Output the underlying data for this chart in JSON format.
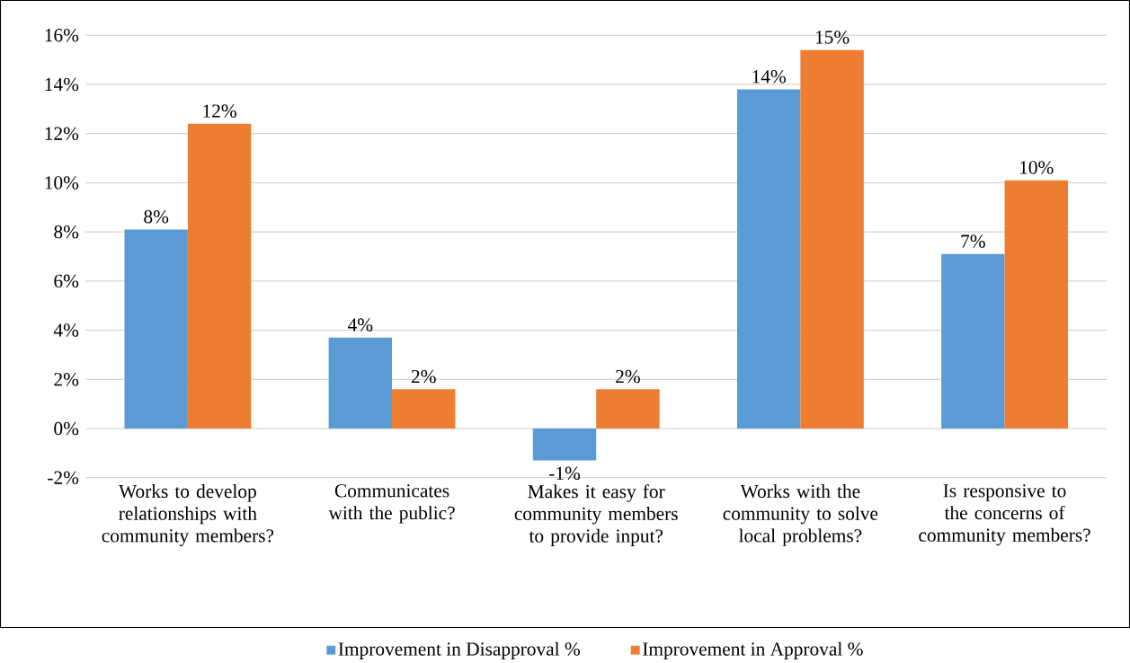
{
  "chart_data": {
    "type": "bar",
    "categories": [
      "Works to develop relationships with community members?",
      "Communicates with the public?",
      "Makes it easy for community members to provide input?",
      "Works with the community to solve local problems?",
      "Is responsive to the concerns of community members?"
    ],
    "series": [
      {
        "name": "Improvement in Disapproval %",
        "color": "#5b9bd5",
        "values": [
          8.1,
          3.7,
          -1.3,
          13.8,
          7.1
        ],
        "value_labels": [
          "8%",
          "4%",
          "-1%",
          "14%",
          "7%"
        ]
      },
      {
        "name": "Improvement in Approval %",
        "color": "#ed7d31",
        "values": [
          12.4,
          1.6,
          1.6,
          15.4,
          10.1
        ],
        "value_labels": [
          "12%",
          "2%",
          "2%",
          "15%",
          "10%"
        ]
      }
    ],
    "ylim": [
      -2,
      16
    ],
    "yticks": [
      {
        "value": -2,
        "label": "-2%"
      },
      {
        "value": 0,
        "label": "0%"
      },
      {
        "value": 2,
        "label": "2%"
      },
      {
        "value": 4,
        "label": "4%"
      },
      {
        "value": 6,
        "label": "6%"
      },
      {
        "value": 8,
        "label": "8%"
      },
      {
        "value": 10,
        "label": "10%"
      },
      {
        "value": 12,
        "label": "12%"
      },
      {
        "value": 14,
        "label": "14%"
      },
      {
        "value": 16,
        "label": "16%"
      }
    ],
    "grid": "y",
    "legend": "bottom"
  }
}
